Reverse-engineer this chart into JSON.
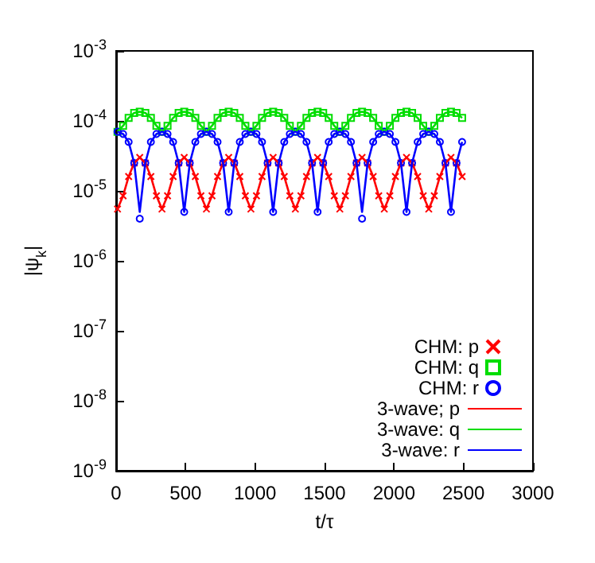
{
  "chart_data": {
    "type": "scatter",
    "xlabel": "t/τ",
    "ylabel": "|ψ$_{k}$|",
    "x": [
      10,
      50,
      90,
      130,
      170,
      210,
      250,
      290,
      330,
      370,
      410,
      450,
      490,
      530,
      570,
      610,
      650,
      690,
      730,
      770,
      810,
      850,
      890,
      930,
      970,
      1010,
      1050,
      1090,
      1130,
      1170,
      1210,
      1250,
      1290,
      1330,
      1370,
      1410,
      1450,
      1490,
      1530,
      1570,
      1610,
      1650,
      1690,
      1730,
      1770,
      1810,
      1850,
      1890,
      1930,
      1970,
      2010,
      2050,
      2090,
      2130,
      2170,
      2210,
      2250,
      2290,
      2330,
      2370,
      2410,
      2450,
      2490
    ],
    "series": [
      {
        "name": "CHM: p",
        "marker": "cross",
        "color": "#ff0000",
        "values": [
          5.5e-06,
          8.5e-06,
          1.6e-05,
          2.5e-05,
          3e-05,
          2.5e-05,
          1.6e-05,
          8.5e-06,
          5.5e-06,
          8.5e-06,
          1.6e-05,
          2.5e-05,
          3e-05,
          2.5e-05,
          1.6e-05,
          8.5e-06,
          5.5e-06,
          8.5e-06,
          1.6e-05,
          2.5e-05,
          3e-05,
          2.5e-05,
          1.6e-05,
          8.5e-06,
          5.5e-06,
          8.5e-06,
          1.6e-05,
          2.5e-05,
          3e-05,
          2.5e-05,
          1.6e-05,
          8.5e-06,
          5.5e-06,
          8.5e-06,
          1.6e-05,
          2.5e-05,
          3e-05,
          2.5e-05,
          1.6e-05,
          8.5e-06,
          5.5e-06,
          8.5e-06,
          1.6e-05,
          2.5e-05,
          3e-05,
          2.5e-05,
          1.6e-05,
          8.5e-06,
          5.5e-06,
          8.5e-06,
          1.6e-05,
          2.5e-05,
          3e-05,
          2.5e-05,
          1.6e-05,
          8.5e-06,
          5.5e-06,
          8.5e-06,
          1.6e-05,
          2.5e-05,
          3e-05,
          2.5e-05,
          1.6e-05
        ]
      },
      {
        "name": "CHM: q",
        "marker": "square",
        "color": "#00dd00",
        "values": [
          7e-05,
          8.5e-05,
          0.00011,
          0.00013,
          0.000135,
          0.00013,
          0.00011,
          8.5e-05,
          7e-05,
          8.5e-05,
          0.00011,
          0.00013,
          0.000135,
          0.00013,
          0.00011,
          8.5e-05,
          7e-05,
          8.5e-05,
          0.00011,
          0.00013,
          0.000135,
          0.00013,
          0.00011,
          8.5e-05,
          7e-05,
          8.5e-05,
          0.00011,
          0.00013,
          0.000135,
          0.00013,
          0.00011,
          8.5e-05,
          7e-05,
          8.5e-05,
          0.00011,
          0.00013,
          0.000135,
          0.00013,
          0.00011,
          8.5e-05,
          7e-05,
          8.5e-05,
          0.00011,
          0.00013,
          0.000135,
          0.00013,
          0.00011,
          8.5e-05,
          7e-05,
          8.5e-05,
          0.00011,
          0.00013,
          0.000135,
          0.00013,
          0.00011,
          8.5e-05,
          7e-05,
          8.5e-05,
          0.00011,
          0.00013,
          0.000135,
          0.00013,
          0.00011
        ]
      },
      {
        "name": "CHM: r",
        "marker": "circle",
        "color": "#0000ff",
        "values": [
          7e-05,
          6.5e-05,
          5e-05,
          2.5e-05,
          4e-06,
          2.5e-05,
          5e-05,
          6.5e-05,
          7e-05,
          6.5e-05,
          5e-05,
          2.5e-05,
          5e-06,
          2.5e-05,
          5e-05,
          6.5e-05,
          7e-05,
          6.5e-05,
          5e-05,
          2.5e-05,
          5e-06,
          2.5e-05,
          5e-05,
          6.5e-05,
          7e-05,
          6.5e-05,
          5e-05,
          2.5e-05,
          5e-06,
          2.5e-05,
          5e-05,
          6.5e-05,
          7e-05,
          6.5e-05,
          5e-05,
          2.5e-05,
          5e-06,
          2.5e-05,
          5e-05,
          6.5e-05,
          7e-05,
          6.5e-05,
          5e-05,
          2.5e-05,
          4e-06,
          2.5e-05,
          5e-05,
          6.5e-05,
          7e-05,
          6.5e-05,
          5e-05,
          2.5e-05,
          5e-06,
          2.5e-05,
          5e-05,
          6.5e-05,
          7e-05,
          6.5e-05,
          5e-05,
          2.5e-05,
          5e-06,
          2.5e-05,
          5e-05
        ]
      },
      {
        "name": "3-wave; p",
        "type": "line",
        "line_style": "solid",
        "color": "#ff0000",
        "values": [
          5.5e-06,
          8.5e-06,
          1.6e-05,
          2.5e-05,
          3e-05,
          2.5e-05,
          1.6e-05,
          8.5e-06,
          5.5e-06,
          8.5e-06,
          1.6e-05,
          2.5e-05,
          3e-05,
          2.5e-05,
          1.6e-05,
          8.5e-06,
          5.5e-06,
          8.5e-06,
          1.6e-05,
          2.5e-05,
          3e-05,
          2.5e-05,
          1.6e-05,
          8.5e-06,
          5.5e-06,
          8.5e-06,
          1.6e-05,
          2.5e-05,
          3e-05,
          2.5e-05,
          1.6e-05,
          8.5e-06,
          5.5e-06,
          8.5e-06,
          1.6e-05,
          2.5e-05,
          3e-05,
          2.5e-05,
          1.6e-05,
          8.5e-06,
          5.5e-06,
          8.5e-06,
          1.6e-05,
          2.5e-05,
          3e-05,
          2.5e-05,
          1.6e-05,
          8.5e-06,
          5.5e-06,
          8.5e-06,
          1.6e-05,
          2.5e-05,
          3e-05,
          2.5e-05,
          1.6e-05,
          8.5e-06,
          5.5e-06,
          8.5e-06,
          1.6e-05,
          2.5e-05,
          3e-05,
          2.5e-05,
          1.6e-05
        ]
      },
      {
        "name": "3-wave: q",
        "type": "line",
        "line_style": "solid",
        "color": "#00dd00",
        "values": [
          7e-05,
          8.5e-05,
          0.00011,
          0.00013,
          0.000135,
          0.00013,
          0.00011,
          8.5e-05,
          7e-05,
          8.5e-05,
          0.00011,
          0.00013,
          0.000135,
          0.00013,
          0.00011,
          8.5e-05,
          7e-05,
          8.5e-05,
          0.00011,
          0.00013,
          0.000135,
          0.00013,
          0.00011,
          8.5e-05,
          7e-05,
          8.5e-05,
          0.00011,
          0.00013,
          0.000135,
          0.00013,
          0.00011,
          8.5e-05,
          7e-05,
          8.5e-05,
          0.00011,
          0.00013,
          0.000135,
          0.00013,
          0.00011,
          8.5e-05,
          7e-05,
          8.5e-05,
          0.00011,
          0.00013,
          0.000135,
          0.00013,
          0.00011,
          8.5e-05,
          7e-05,
          8.5e-05,
          0.00011,
          0.00013,
          0.000135,
          0.00013,
          0.00011,
          8.5e-05,
          7e-05,
          8.5e-05,
          0.00011,
          0.00013,
          0.000135,
          0.00013,
          0.00011
        ]
      },
      {
        "name": "3-wave: r",
        "type": "line",
        "line_style": "solid",
        "color": "#0000ff",
        "values": [
          7e-05,
          6.5e-05,
          5e-05,
          2.5e-05,
          5e-06,
          2.5e-05,
          5e-05,
          6.5e-05,
          7e-05,
          6.5e-05,
          5e-05,
          2.5e-05,
          5e-06,
          2.5e-05,
          5e-05,
          6.5e-05,
          7e-05,
          6.5e-05,
          5e-05,
          2.5e-05,
          5e-06,
          2.5e-05,
          5e-05,
          6.5e-05,
          7e-05,
          6.5e-05,
          5e-05,
          2.5e-05,
          5e-06,
          2.5e-05,
          5e-05,
          6.5e-05,
          7e-05,
          6.5e-05,
          5e-05,
          2.5e-05,
          5e-06,
          2.5e-05,
          5e-05,
          6.5e-05,
          7e-05,
          6.5e-05,
          5e-05,
          2.5e-05,
          5e-06,
          2.5e-05,
          5e-05,
          6.5e-05,
          7e-05,
          6.5e-05,
          5e-05,
          2.5e-05,
          5e-06,
          2.5e-05,
          5e-05,
          6.5e-05,
          7e-05,
          6.5e-05,
          5e-05,
          2.5e-05,
          5e-06,
          2.5e-05,
          5e-05
        ]
      }
    ],
    "xlim": [
      0,
      3000
    ],
    "xticks": [
      0,
      500,
      1000,
      1500,
      2000,
      2500,
      3000
    ],
    "log": "y",
    "ylim": [
      1e-09,
      0.001
    ],
    "yticks": [
      {
        "value": 1e-09,
        "label": "10$^{-9}$"
      },
      {
        "value": 1e-08,
        "label": "10$^{-8}$"
      },
      {
        "value": 1e-07,
        "label": "10$^{-7}$"
      },
      {
        "value": 1e-06,
        "label": "10$^{-6}$"
      },
      {
        "value": 1e-05,
        "label": "10$^{-5}$"
      },
      {
        "value": 0.0001,
        "label": "10$^{-4}$"
      },
      {
        "value": 0.001,
        "label": "10$^{-3}$"
      }
    ],
    "grid": false,
    "legend": "bottom right"
  }
}
